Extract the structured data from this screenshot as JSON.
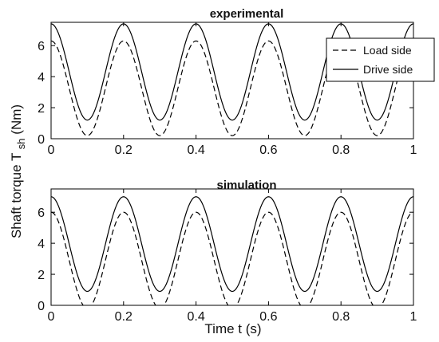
{
  "figure": {
    "ylabel_main": "Shaft torque T",
    "ylabel_sub": "sh",
    "ylabel_unit": " (Nm)",
    "xlabel": "Time t (s)"
  },
  "chart_data": [
    {
      "type": "line",
      "title": "experimental",
      "xlim": [
        0,
        1
      ],
      "ylim": [
        0,
        7.5
      ],
      "xticks": [
        0,
        0.2,
        0.4,
        0.6,
        0.8,
        1
      ],
      "xtick_labels": [
        "0",
        "0.2",
        "0.4",
        "0.6",
        "0.8",
        "1"
      ],
      "yticks": [
        0,
        2,
        4,
        6
      ],
      "ytick_labels": [
        "0",
        "2",
        "4",
        "6"
      ],
      "grid": false,
      "legend_position": "top-right",
      "period": 0.2,
      "series": [
        {
          "name": "Load side",
          "style": "dashed",
          "color": "#000000",
          "x": [
            0,
            0.1,
            0.2,
            0.3,
            0.4,
            0.5,
            0.6,
            0.7,
            0.8,
            0.9,
            1
          ],
          "y": [
            6.3,
            0.2,
            6.3,
            0.2,
            6.3,
            0.2,
            6.3,
            0.2,
            6.3,
            0.2,
            6.3
          ]
        },
        {
          "name": "Drive side",
          "style": "solid",
          "color": "#000000",
          "x": [
            0,
            0.1,
            0.2,
            0.3,
            0.4,
            0.5,
            0.6,
            0.7,
            0.8,
            0.9,
            1
          ],
          "y": [
            7.4,
            1.2,
            7.4,
            1.2,
            7.4,
            1.2,
            7.4,
            1.2,
            7.4,
            1.2,
            7.4
          ]
        }
      ]
    },
    {
      "type": "line",
      "title": "simulation",
      "xlim": [
        0,
        1
      ],
      "ylim": [
        0,
        7.5
      ],
      "xticks": [
        0,
        0.2,
        0.4,
        0.6,
        0.8,
        1
      ],
      "xtick_labels": [
        "0",
        "0.2",
        "0.4",
        "0.6",
        "0.8",
        "1"
      ],
      "yticks": [
        0,
        2,
        4,
        6
      ],
      "ytick_labels": [
        "0",
        "2",
        "4",
        "6"
      ],
      "grid": false,
      "period": 0.2,
      "series": [
        {
          "style": "dashed",
          "color": "#000000",
          "x": [
            0,
            0.1,
            0.2,
            0.3,
            0.4,
            0.5,
            0.6,
            0.7,
            0.8,
            0.9,
            1
          ],
          "y": [
            6.0,
            -0.2,
            6.0,
            -0.2,
            6.0,
            -0.2,
            6.0,
            -0.2,
            6.0,
            -0.2,
            6.0
          ]
        },
        {
          "style": "solid",
          "color": "#000000",
          "x": [
            0,
            0.1,
            0.2,
            0.3,
            0.4,
            0.5,
            0.6,
            0.7,
            0.8,
            0.9,
            1
          ],
          "y": [
            7.0,
            0.9,
            7.0,
            0.9,
            7.0,
            0.9,
            7.0,
            0.9,
            7.0,
            0.9,
            7.0
          ]
        }
      ]
    }
  ]
}
